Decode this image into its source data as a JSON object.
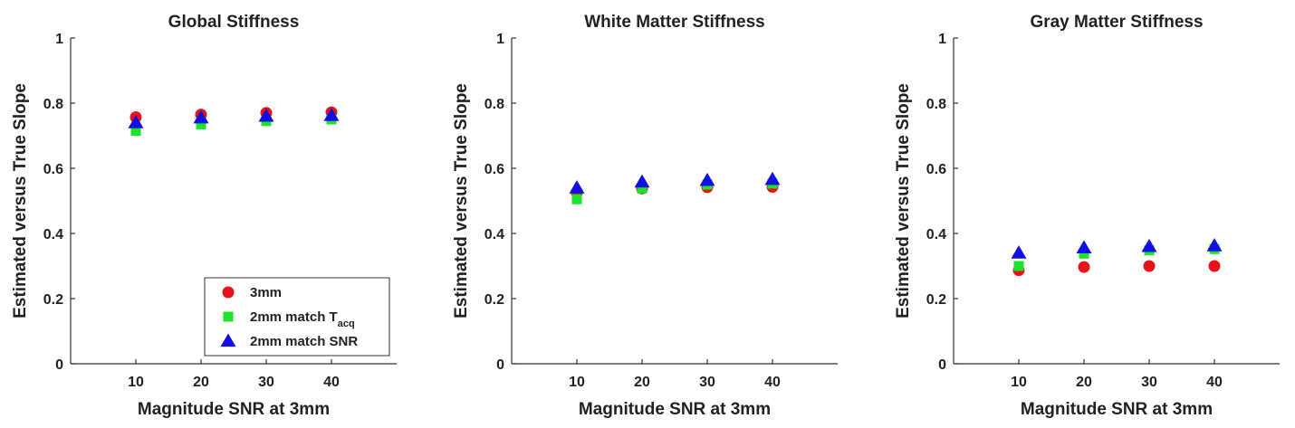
{
  "chart_data": [
    {
      "type": "scatter",
      "title": "Global Stiffness",
      "xlabel": "Magnitude SNR at 3mm",
      "ylabel": "Estimated versus True Slope",
      "x": [
        10,
        20,
        30,
        40
      ],
      "xlim": [
        0,
        50
      ],
      "ylim": [
        0,
        1
      ],
      "xticks": [
        "10",
        "20",
        "30",
        "40"
      ],
      "yticks": [
        "0",
        "0.2",
        "0.4",
        "0.6",
        "0.8",
        "1"
      ],
      "show_legend": true,
      "series": [
        {
          "name": "3mm",
          "values": [
            0.757,
            0.765,
            0.77,
            0.772
          ]
        },
        {
          "name": "2mm match T",
          "values": [
            0.715,
            0.735,
            0.745,
            0.75
          ]
        },
        {
          "name": "2mm match SNR",
          "values": [
            0.74,
            0.755,
            0.76,
            0.762
          ]
        }
      ]
    },
    {
      "type": "scatter",
      "title": "White Matter Stiffness",
      "xlabel": "Magnitude SNR at 3mm",
      "ylabel": "Estimated versus True Slope",
      "x": [
        10,
        20,
        30,
        40
      ],
      "xlim": [
        0,
        50
      ],
      "ylim": [
        0,
        1
      ],
      "xticks": [
        "10",
        "20",
        "30",
        "40"
      ],
      "yticks": [
        "0",
        "0.2",
        "0.4",
        "0.6",
        "0.8",
        "1"
      ],
      "show_legend": false,
      "series": [
        {
          "name": "3mm",
          "values": [
            0.525,
            0.538,
            0.542,
            0.543
          ]
        },
        {
          "name": "2mm match T",
          "values": [
            0.505,
            0.538,
            0.55,
            0.553
          ]
        },
        {
          "name": "2mm match SNR",
          "values": [
            0.54,
            0.558,
            0.563,
            0.566
          ]
        }
      ]
    },
    {
      "type": "scatter",
      "title": "Gray Matter Stiffness",
      "xlabel": "Magnitude SNR at 3mm",
      "ylabel": "Estimated versus True Slope",
      "x": [
        10,
        20,
        30,
        40
      ],
      "xlim": [
        0,
        50
      ],
      "ylim": [
        0,
        1
      ],
      "xticks": [
        "10",
        "20",
        "30",
        "40"
      ],
      "yticks": [
        "0",
        "0.2",
        "0.4",
        "0.6",
        "0.8",
        "1"
      ],
      "show_legend": false,
      "series": [
        {
          "name": "3mm",
          "values": [
            0.287,
            0.297,
            0.3,
            0.3
          ]
        },
        {
          "name": "2mm match T",
          "values": [
            0.3,
            0.338,
            0.348,
            0.352
          ]
        },
        {
          "name": "2mm match SNR",
          "values": [
            0.34,
            0.356,
            0.36,
            0.362
          ]
        }
      ]
    }
  ],
  "legend": {
    "items": [
      {
        "label": "3mm",
        "subscript": ""
      },
      {
        "label": "2mm match T",
        "subscript": "acq"
      },
      {
        "label": "2mm match SNR",
        "subscript": ""
      }
    ],
    "placement": "bottom-right"
  },
  "colors": {
    "series": [
      "#e8131a",
      "#1ee32b",
      "#1010e0"
    ],
    "axis": "#333333",
    "text": "#222222"
  },
  "markers": [
    "circle",
    "square",
    "triangle"
  ]
}
